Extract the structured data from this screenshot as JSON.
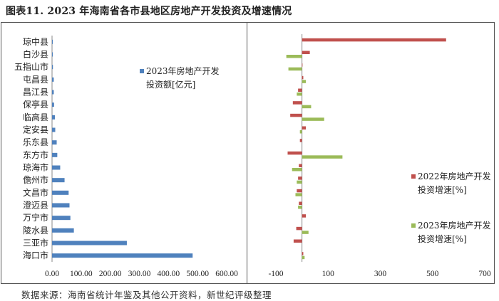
{
  "title": "图表11.   2023 年海南省各市县地区房地产开发投资及增速情况",
  "source": "数据来源：海南省统计年鉴及其他公开资料，新世纪评级整理",
  "colors": {
    "blue": "#4f81bd",
    "red": "#c0504d",
    "green": "#9bbb59"
  },
  "chart_data": [
    {
      "type": "bar",
      "orientation": "horizontal",
      "categories": [
        "琼中县",
        "白沙县",
        "五指山市",
        "屯昌县",
        "昌江县",
        "保亭县",
        "临高县",
        "定安县",
        "乐东县",
        "东方市",
        "琼海市",
        "儋州市",
        "文昌市",
        "澄迈县",
        "万宁市",
        "陵水县",
        "三亚市",
        "海口市"
      ],
      "series": [
        {
          "name": "2023年房地产开发投资额[亿元]",
          "legend_lines": [
            "2023年房地产开发",
            "投资额[亿元]"
          ],
          "values": [
            1,
            2,
            3,
            6,
            6,
            7,
            10,
            11,
            16,
            18,
            28,
            43,
            57,
            60,
            63,
            75,
            257,
            483
          ]
        }
      ],
      "xlim": [
        0,
        600
      ],
      "xticks": [
        "0.00",
        "100.00",
        "200.00",
        "300.00",
        "400.00",
        "500.00",
        "600.00"
      ]
    },
    {
      "type": "bar",
      "orientation": "horizontal",
      "categories": [
        "琼中县",
        "白沙县",
        "五指山市",
        "屯昌县",
        "昌江县",
        "保亭县",
        "临高县",
        "定安县",
        "乐东县",
        "东方市",
        "琼海市",
        "儋州市",
        "文昌市",
        "澄迈县",
        "万宁市",
        "陵水县",
        "三亚市",
        "海口市"
      ],
      "series": [
        {
          "name": "2022年房地产开发投资增速[%]",
          "legend_lines": [
            "2022年房地产开发",
            "投资增速[%]"
          ],
          "values": [
            552,
            30,
            2,
            5,
            -15,
            -35,
            -45,
            15,
            -8,
            -55,
            -12,
            -15,
            -20,
            -12,
            15,
            -22,
            -32,
            5
          ]
        },
        {
          "name": "2023年房地产开发投资增速[%]",
          "legend_lines": [
            "2023年房地产开发",
            "投资增速[%]"
          ],
          "values": [
            0,
            -60,
            -52,
            15,
            -20,
            35,
            85,
            -8,
            0,
            155,
            -38,
            -20,
            -25,
            -15,
            0,
            25,
            0,
            10
          ]
        }
      ],
      "xlim": [
        -100,
        700
      ],
      "xticks": [
        "-100",
        "100",
        "300",
        "500",
        "700"
      ]
    }
  ]
}
